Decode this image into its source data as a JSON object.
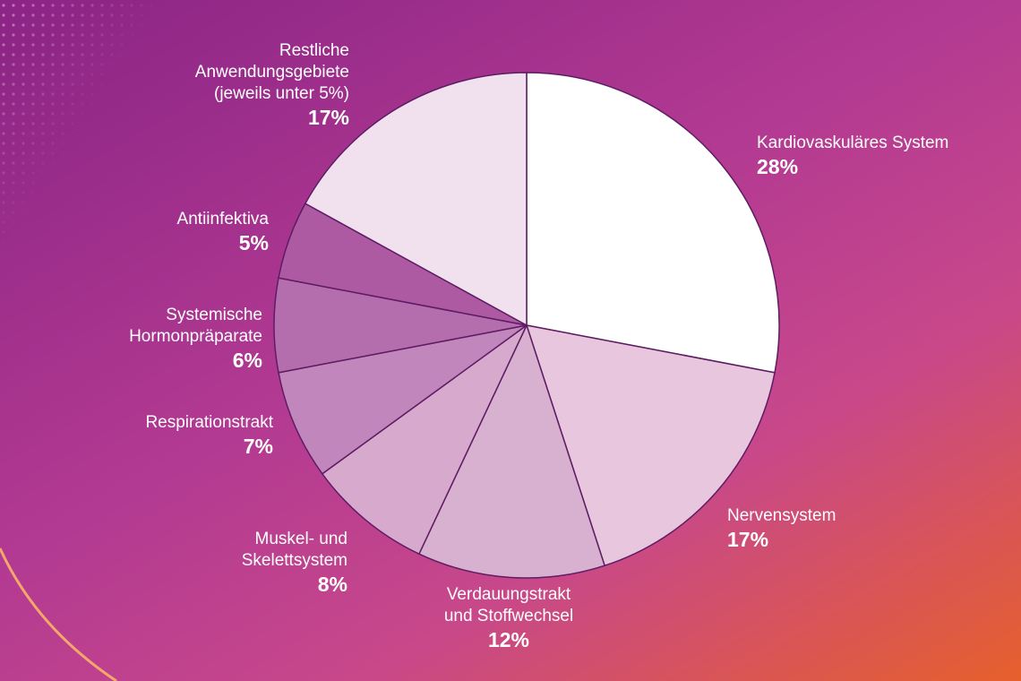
{
  "chart_data": {
    "type": "pie",
    "title": "",
    "start": "top",
    "direction": "clockwise",
    "slices": [
      {
        "name": "Kardiovaskuläres System",
        "pct_label": "28%",
        "value": 28,
        "color": "#ffffff"
      },
      {
        "name": "Nervensystem",
        "pct_label": "17%",
        "value": 17,
        "color": "#e7c6de"
      },
      {
        "name": "Verdauungstrakt\nund Stoffwechsel",
        "pct_label": "12%",
        "value": 12,
        "color": "#d8b0d0"
      },
      {
        "name": "Muskel- und\nSkelettsystem",
        "pct_label": "8%",
        "value": 8,
        "color": "#d7aacd"
      },
      {
        "name": "Respirationstrakt",
        "pct_label": "7%",
        "value": 7,
        "color": "#c187bd"
      },
      {
        "name": "Systemische\nHormonpräparate",
        "pct_label": "6%",
        "value": 6,
        "color": "#b56ead"
      },
      {
        "name": "Antiinfektiva",
        "pct_label": "5%",
        "value": 5,
        "color": "#ae5aa3"
      },
      {
        "name": "Restliche\nAnwendungsgebiete\n(jeweils unter 5%)",
        "pct_label": "17%",
        "value": 17,
        "color": "#f1e1ee"
      }
    ],
    "stroke_color": "#5e1c63",
    "legend": "none"
  },
  "decor": {
    "dot_color": "#d38fc6",
    "arc_color": "#f1a86a"
  }
}
